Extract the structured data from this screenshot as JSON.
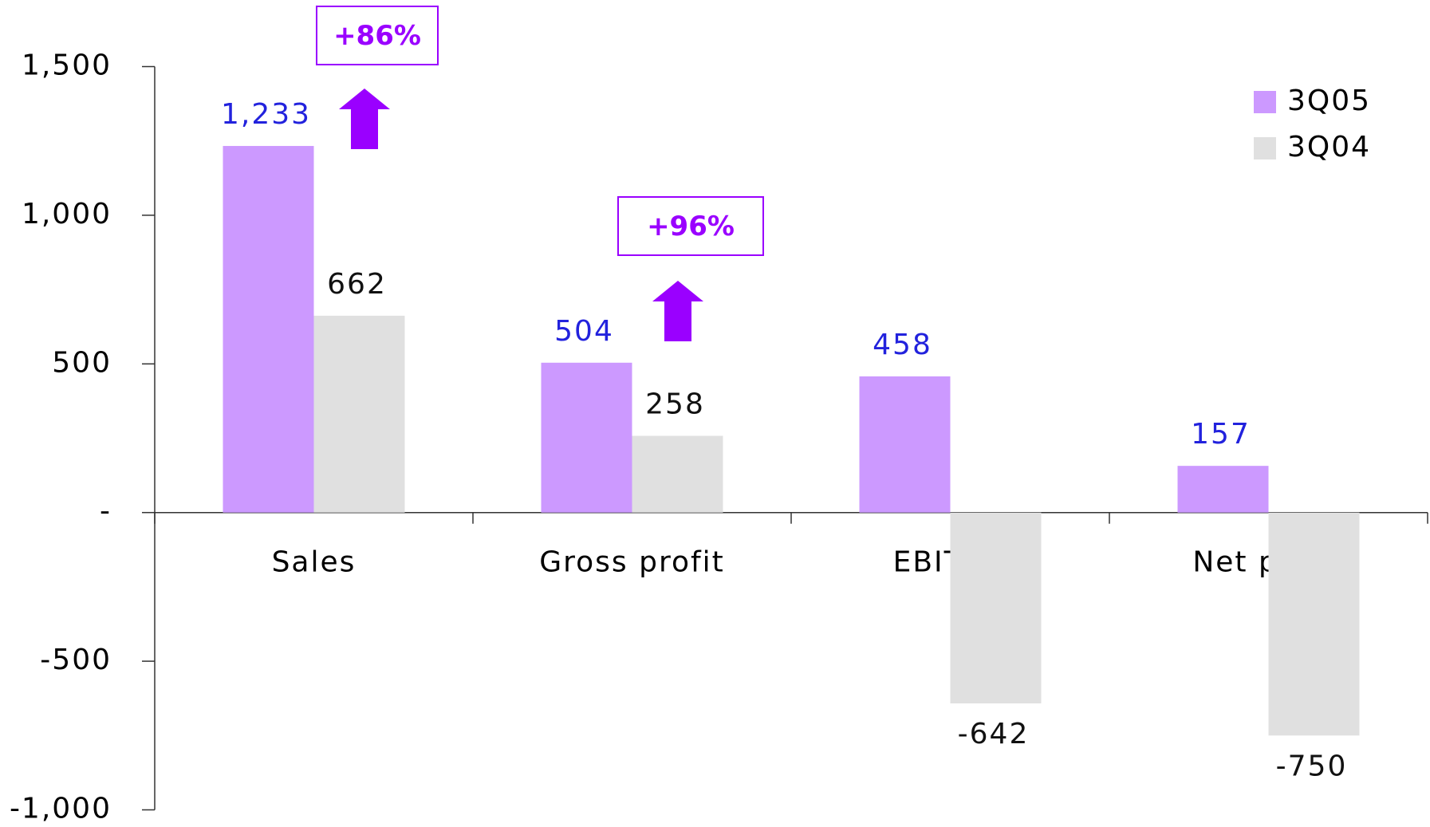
{
  "chart_data": {
    "type": "bar",
    "categories": [
      "Sales",
      "Gross profit",
      "EBITDA",
      "Net profit"
    ],
    "series": [
      {
        "name": "3Q05",
        "color": "#cc99ff",
        "values": [
          1233,
          504,
          458,
          157
        ],
        "value_labels": [
          "1,233",
          "504",
          "458",
          "157"
        ]
      },
      {
        "name": "3Q04",
        "color": "#e0e0e0",
        "values": [
          662,
          258,
          -642,
          -750
        ]
      }
    ],
    "ylim": [
      -1000,
      1500
    ],
    "yticks": [
      {
        "value": -1000,
        "label": "-1,000"
      },
      -500,
      {
        "value": 0,
        "label": "-"
      },
      500,
      {
        "value": 1000,
        "label": "1,000"
      },
      {
        "value": 1500,
        "label": "1,500"
      }
    ],
    "annotations": [
      "+86%",
      "+96%"
    ],
    "legend": "top-right"
  }
}
